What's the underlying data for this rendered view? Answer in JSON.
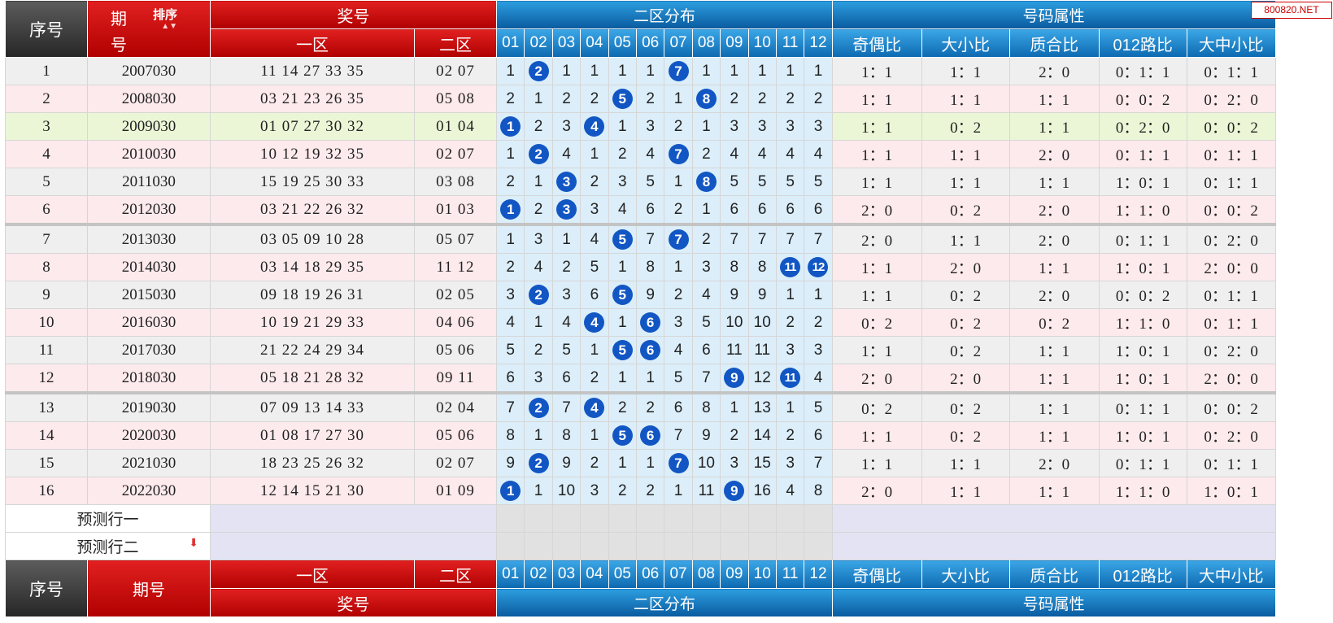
{
  "watermark": "800820.NET",
  "header": {
    "seq": "序号",
    "period_top": "期",
    "period_bottom": "号",
    "sort": "排序",
    "prize": "奖号",
    "zone1": "一区",
    "zone2": "二区",
    "dist": "二区分布",
    "attrs": "号码属性",
    "numbers": [
      "01",
      "02",
      "03",
      "04",
      "05",
      "06",
      "07",
      "08",
      "09",
      "10",
      "11",
      "12"
    ],
    "attr_cols": [
      "奇偶比",
      "大小比",
      "质合比",
      "012路比",
      "大中小比"
    ]
  },
  "rows": [
    {
      "seq": "1",
      "period": "2007030",
      "front": "11 14 27 33 35",
      "back": "02 07",
      "dist": [
        "1",
        "2",
        "1",
        "1",
        "1",
        "1",
        "7",
        "1",
        "1",
        "1",
        "1",
        "1"
      ],
      "attrs": [
        "1：1",
        "1：1",
        "2：0",
        "0：1：1",
        "0：1：1"
      ]
    },
    {
      "seq": "2",
      "period": "2008030",
      "front": "03 21 23 26 35",
      "back": "05 08",
      "dist": [
        "2",
        "1",
        "2",
        "2",
        "5",
        "2",
        "1",
        "8",
        "2",
        "2",
        "2",
        "2"
      ],
      "attrs": [
        "1：1",
        "1：1",
        "1：1",
        "0：0：2",
        "0：2：0"
      ]
    },
    {
      "seq": "3",
      "period": "2009030",
      "front": "01 07 27 30 32",
      "back": "01 04",
      "dist": [
        "1",
        "2",
        "3",
        "4",
        "1",
        "3",
        "2",
        "1",
        "3",
        "3",
        "3",
        "3"
      ],
      "attrs": [
        "1：1",
        "0：2",
        "1：1",
        "0：2：0",
        "0：0：2"
      ]
    },
    {
      "seq": "4",
      "period": "2010030",
      "front": "10 12 19 32 35",
      "back": "02 07",
      "dist": [
        "1",
        "2",
        "4",
        "1",
        "2",
        "4",
        "7",
        "2",
        "4",
        "4",
        "4",
        "4"
      ],
      "attrs": [
        "1：1",
        "1：1",
        "2：0",
        "0：1：1",
        "0：1：1"
      ]
    },
    {
      "seq": "5",
      "period": "2011030",
      "front": "15 19 25 30 33",
      "back": "03 08",
      "dist": [
        "2",
        "1",
        "3",
        "2",
        "3",
        "5",
        "1",
        "8",
        "5",
        "5",
        "5",
        "5"
      ],
      "attrs": [
        "1：1",
        "1：1",
        "1：1",
        "1：0：1",
        "0：1：1"
      ]
    },
    {
      "seq": "6",
      "period": "2012030",
      "front": "03 21 22 26 32",
      "back": "01 03",
      "dist": [
        "1",
        "2",
        "3",
        "3",
        "4",
        "6",
        "2",
        "1",
        "6",
        "6",
        "6",
        "6"
      ],
      "attrs": [
        "2：0",
        "0：2",
        "2：0",
        "1：1：0",
        "0：0：2"
      ]
    },
    {
      "seq": "7",
      "period": "2013030",
      "front": "03 05 09 10 28",
      "back": "05 07",
      "dist": [
        "1",
        "3",
        "1",
        "4",
        "5",
        "7",
        "7",
        "2",
        "7",
        "7",
        "7",
        "7"
      ],
      "attrs": [
        "2：0",
        "1：1",
        "2：0",
        "0：1：1",
        "0：2：0"
      ]
    },
    {
      "seq": "8",
      "period": "2014030",
      "front": "03 14 18 29 35",
      "back": "11 12",
      "dist": [
        "2",
        "4",
        "2",
        "5",
        "1",
        "8",
        "1",
        "3",
        "8",
        "8",
        "11",
        "12"
      ],
      "attrs": [
        "1：1",
        "2：0",
        "1：1",
        "1：0：1",
        "2：0：0"
      ]
    },
    {
      "seq": "9",
      "period": "2015030",
      "front": "09 18 19 26 31",
      "back": "02 05",
      "dist": [
        "3",
        "2",
        "3",
        "6",
        "5",
        "9",
        "2",
        "4",
        "9",
        "9",
        "1",
        "1"
      ],
      "attrs": [
        "1：1",
        "0：2",
        "2：0",
        "0：0：2",
        "0：1：1"
      ]
    },
    {
      "seq": "10",
      "period": "2016030",
      "front": "10 19 21 29 33",
      "back": "04 06",
      "dist": [
        "4",
        "1",
        "4",
        "4",
        "1",
        "6",
        "3",
        "5",
        "10",
        "10",
        "2",
        "2"
      ],
      "attrs": [
        "0：2",
        "0：2",
        "0：2",
        "1：1：0",
        "0：1：1"
      ]
    },
    {
      "seq": "11",
      "period": "2017030",
      "front": "21 22 24 29 34",
      "back": "05 06",
      "dist": [
        "5",
        "2",
        "5",
        "1",
        "5",
        "6",
        "4",
        "6",
        "11",
        "11",
        "3",
        "3"
      ],
      "attrs": [
        "1：1",
        "0：2",
        "1：1",
        "1：0：1",
        "0：2：0"
      ]
    },
    {
      "seq": "12",
      "period": "2018030",
      "front": "05 18 21 28 32",
      "back": "09 11",
      "dist": [
        "6",
        "3",
        "6",
        "2",
        "1",
        "1",
        "5",
        "7",
        "9",
        "12",
        "11",
        "4"
      ],
      "attrs": [
        "2：0",
        "2：0",
        "1：1",
        "1：0：1",
        "2：0：0"
      ]
    },
    {
      "seq": "13",
      "period": "2019030",
      "front": "07 09 13 14 33",
      "back": "02 04",
      "dist": [
        "7",
        "2",
        "7",
        "4",
        "2",
        "2",
        "6",
        "8",
        "1",
        "13",
        "1",
        "5"
      ],
      "attrs": [
        "0：2",
        "0：2",
        "1：1",
        "0：1：1",
        "0：0：2"
      ]
    },
    {
      "seq": "14",
      "period": "2020030",
      "front": "01 08 17 27 30",
      "back": "05 06",
      "dist": [
        "8",
        "1",
        "8",
        "1",
        "5",
        "6",
        "7",
        "9",
        "2",
        "14",
        "2",
        "6"
      ],
      "attrs": [
        "1：1",
        "0：2",
        "1：1",
        "1：0：1",
        "0：2：0"
      ]
    },
    {
      "seq": "15",
      "period": "2021030",
      "front": "18 23 25 26 32",
      "back": "02 07",
      "dist": [
        "9",
        "2",
        "9",
        "2",
        "1",
        "1",
        "7",
        "10",
        "3",
        "15",
        "3",
        "7"
      ],
      "attrs": [
        "1：1",
        "1：1",
        "2：0",
        "0：1：1",
        "0：1：1"
      ]
    },
    {
      "seq": "16",
      "period": "2022030",
      "front": "12 14 15 21 30",
      "back": "01 09",
      "dist": [
        "1",
        "1",
        "10",
        "3",
        "2",
        "2",
        "1",
        "11",
        "9",
        "16",
        "4",
        "8"
      ],
      "attrs": [
        "2：0",
        "1：1",
        "1：1",
        "1：1：0",
        "1：0：1"
      ]
    }
  ],
  "predict": [
    "预测行一",
    "预测行二"
  ],
  "row_colors": [
    "#efefef",
    "#fdeaed",
    "#ebf6d6"
  ],
  "colors": {
    "ball": "#1256c4",
    "front_text": "#c0302e",
    "back_text": "#222b8a",
    "dist_bg": "#dbeefa"
  }
}
